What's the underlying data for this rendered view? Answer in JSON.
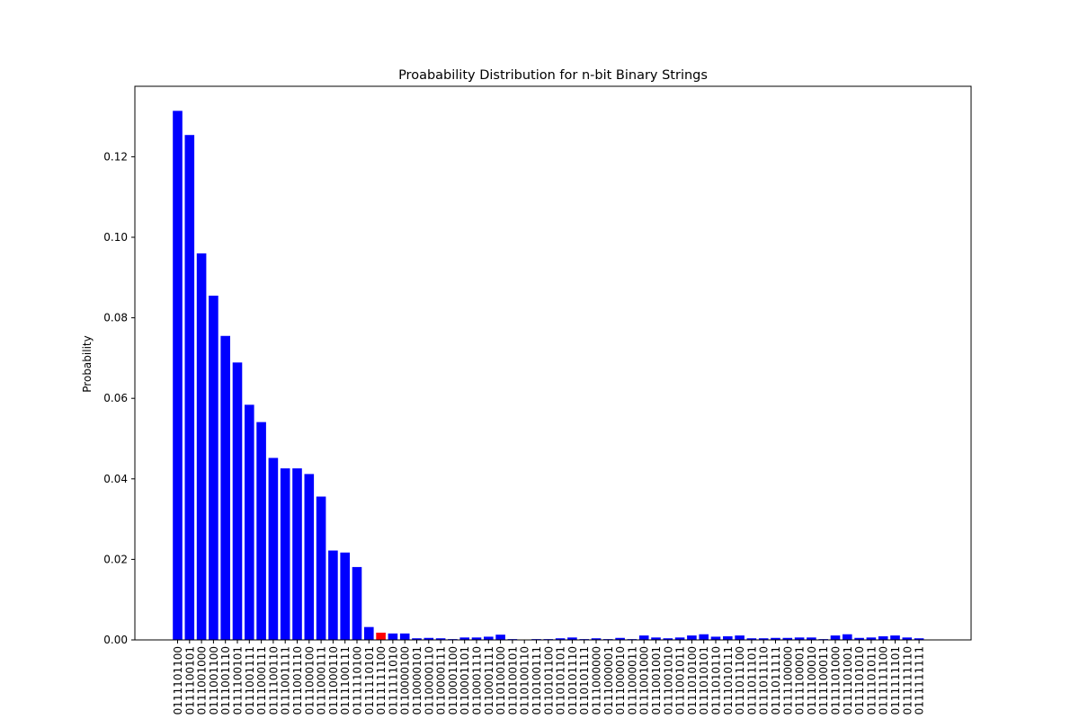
{
  "chart_data": {
    "type": "bar",
    "title": "Proabability Distribution for n-bit Binary Strings",
    "xlabel": "",
    "ylabel": "Probability",
    "ylim": [
      0,
      0.1375
    ],
    "yticks": [
      "0.00",
      "0.02",
      "0.04",
      "0.06",
      "0.08",
      "0.10",
      "0.12"
    ],
    "grid": false,
    "colors": {
      "default": "#0000ff",
      "highlight": "#ff0000",
      "axis": "#000000"
    },
    "highlight_category": "0111111100",
    "categories": [
      "0111101100",
      "0111100101",
      "0111001000",
      "0111001100",
      "0111001110",
      "0111100101",
      "0111001111",
      "0111000111",
      "0111100110",
      "0111001111",
      "0111001110",
      "0111000100",
      "0111000111",
      "0111000110",
      "0111100111",
      "0111110100",
      "0111110101",
      "0111111100",
      "0111111010",
      "0110000100",
      "0110000101",
      "0110000110",
      "0110000111",
      "0110001100",
      "0110001101",
      "0110001110",
      "0110001111",
      "0110100100",
      "0110100101",
      "0110100110",
      "0110100111",
      "0110101100",
      "0110101101",
      "0110101110",
      "0110101111",
      "0111000000",
      "0111000001",
      "0111000010",
      "0111000011",
      "0111001000",
      "0111001001",
      "0111001010",
      "0111001011",
      "0111010100",
      "0111010101",
      "0111010110",
      "0111010111",
      "0111011100",
      "0111011101",
      "0111011110",
      "0111011111",
      "0111100000",
      "0111100001",
      "0111100010",
      "0111100011",
      "0111101000",
      "0111101001",
      "0111101010",
      "0111101011",
      "0111111100",
      "0111111101",
      "0111111110",
      "0111111111"
    ],
    "values": [
      0.1314,
      0.1254,
      0.096,
      0.0855,
      0.0755,
      0.0689,
      0.0584,
      0.0541,
      0.0452,
      0.0426,
      0.0426,
      0.0412,
      0.0356,
      0.0222,
      0.0217,
      0.0181,
      0.0032,
      0.0018,
      0.0016,
      0.0016,
      0.0004,
      0.0005,
      0.0004,
      0.0002,
      0.0006,
      0.0006,
      0.0008,
      0.0013,
      0.0002,
      0.0001,
      0.0002,
      0.0002,
      0.0004,
      0.0006,
      0.0002,
      0.0004,
      0.0002,
      0.0005,
      0.0002,
      0.0011,
      0.0006,
      0.0004,
      0.0006,
      0.0011,
      0.0014,
      0.0008,
      0.0009,
      0.0011,
      0.0004,
      0.0004,
      0.0005,
      0.0005,
      0.0006,
      0.0006,
      0.0002,
      0.0011,
      0.0014,
      0.0005,
      0.0006,
      0.0009,
      0.0011,
      0.0006,
      0.0004
    ]
  }
}
